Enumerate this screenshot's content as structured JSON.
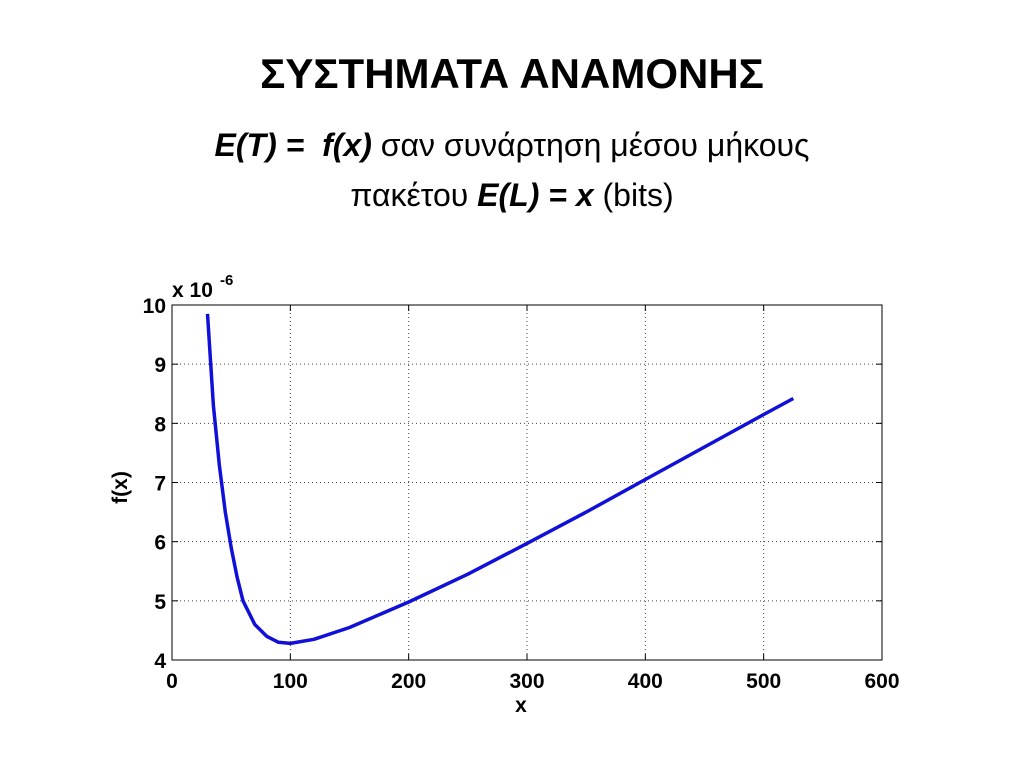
{
  "chart_data": {
    "type": "line",
    "title": "ΣΥΣΤΗΜΑΤΑ ΑΝΑΜΟΝΗΣ",
    "subtitle": [
      {
        "text": "E(T) =  ",
        "style": "bolditalic"
      },
      {
        "text": "f(x)",
        "style": "bolditalic"
      },
      {
        "text": " σαν συνάρτηση μέσου μήκους",
        "style": "normal"
      },
      {
        "text": "πακέτου ",
        "style": "normal",
        "newline": true
      },
      {
        "text": "E(L) = x",
        "style": "bolditalic"
      },
      {
        "text": " (bits)",
        "style": "normal"
      }
    ],
    "x_label": "x",
    "y_label": "f(x)",
    "y_multiplier": {
      "base": "x 10",
      "exponent": "-6"
    },
    "x": [
      30,
      35,
      40,
      45,
      50,
      55,
      60,
      70,
      80,
      90,
      100,
      120,
      150,
      200,
      250,
      300,
      350,
      400,
      450,
      500,
      525
    ],
    "series": [
      {
        "name": "f(x)",
        "color": "#1010d8",
        "values": [
          9.85,
          8.3,
          7.3,
          6.5,
          5.9,
          5.4,
          5.0,
          4.6,
          4.4,
          4.3,
          4.28,
          4.35,
          4.55,
          4.98,
          5.45,
          5.97,
          6.5,
          7.05,
          7.6,
          8.15,
          8.42
        ]
      }
    ],
    "xlim": [
      0,
      600
    ],
    "xticks": [
      0,
      100,
      200,
      300,
      400,
      500,
      600
    ],
    "ylim": [
      4,
      10
    ],
    "yticks": [
      4,
      5,
      6,
      7,
      8,
      9,
      10
    ],
    "grid": true
  }
}
